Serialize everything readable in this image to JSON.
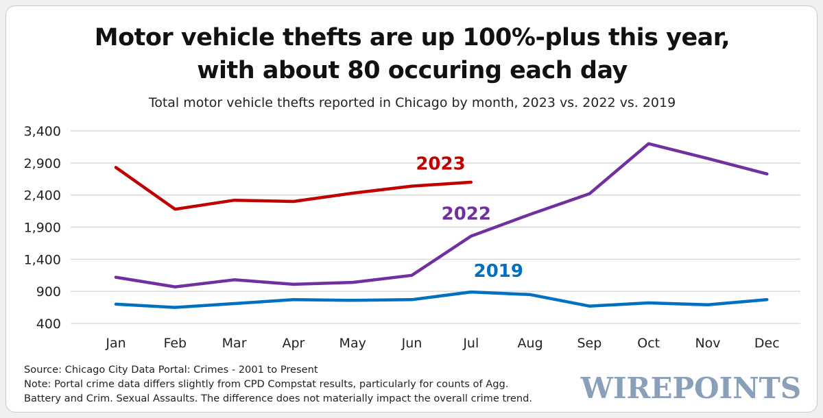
{
  "header": {
    "title_line1": "Motor vehicle thefts are up 100%-plus this year,",
    "title_line2": "with about 80 occuring each day",
    "subtitle": "Total motor vehicle thefts reported in Chicago by month, 2023 vs. 2022 vs. 2019"
  },
  "footer": {
    "source": "Source: Chicago City Data Portal: Crimes - 2001 to Present",
    "note_line1": "Note: Portal crime data differs slightly from CPD Compstat results, particularly for counts of Agg.",
    "note_line2": "Battery and Crim. Sexual Assaults. The difference does not materially impact the overall crime trend.",
    "logo_text": "WIREPOINTS"
  },
  "colors": {
    "series_2023": "#c00000",
    "series_2022": "#7030a0",
    "series_2019": "#0070c0",
    "gridline": "#d9d9d9",
    "logo": "#8aa0b8"
  },
  "chart_data": {
    "type": "line",
    "title": "Motor vehicle thefts are up 100%-plus this year, with about 80 occuring each day",
    "subtitle": "Total motor vehicle thefts reported in Chicago by month, 2023 vs. 2022 vs. 2019",
    "categories": [
      "Jan",
      "Feb",
      "Mar",
      "Apr",
      "May",
      "Jun",
      "Jul",
      "Aug",
      "Sep",
      "Oct",
      "Nov",
      "Dec"
    ],
    "yticks": [
      400,
      900,
      1400,
      1900,
      2400,
      2900,
      3400
    ],
    "ytick_labels": [
      "400",
      "900",
      "1,400",
      "1,900",
      "2,400",
      "2,900",
      "3,400"
    ],
    "ylim": [
      400,
      3400
    ],
    "grid": true,
    "legend": "inline labels",
    "series": [
      {
        "name": "2023",
        "color": "#c00000",
        "values": [
          2830,
          2180,
          2320,
          2300,
          2430,
          2540,
          2600,
          null,
          null,
          null,
          null,
          null
        ]
      },
      {
        "name": "2022",
        "color": "#7030a0",
        "values": [
          1120,
          970,
          1080,
          1010,
          1040,
          1150,
          1760,
          2100,
          2420,
          3200,
          2970,
          2730
        ]
      },
      {
        "name": "2019",
        "color": "#0070c0",
        "values": [
          700,
          650,
          710,
          770,
          760,
          770,
          890,
          850,
          670,
          720,
          690,
          770
        ]
      }
    ]
  }
}
